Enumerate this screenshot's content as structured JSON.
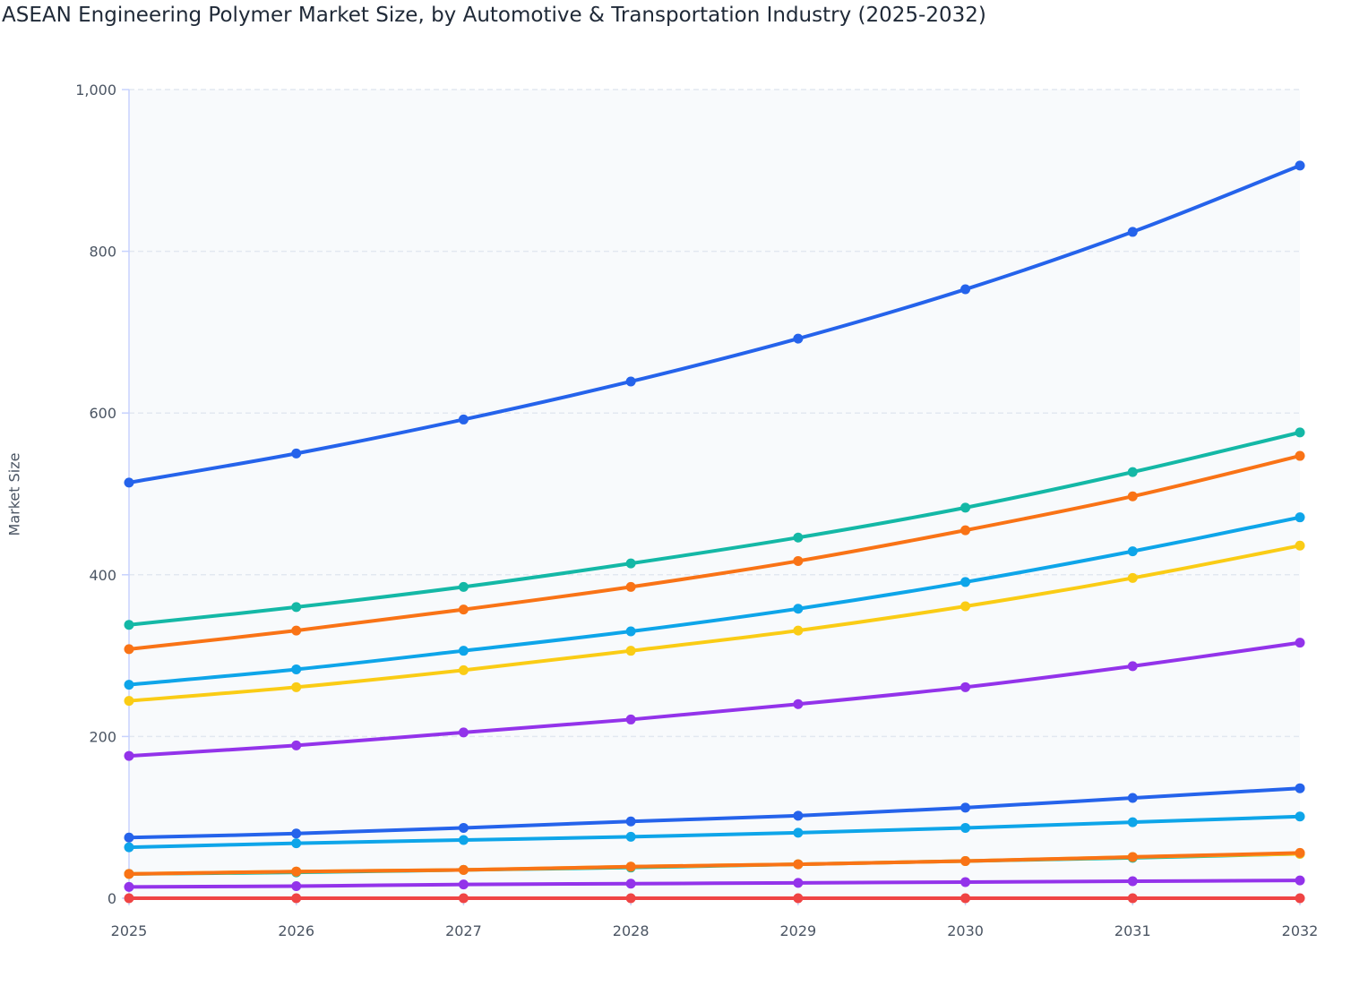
{
  "chart_data": {
    "type": "line",
    "title": "ASEAN Engineering Polymer Market Size, by Automotive & Transportation Industry (2025-2032)",
    "xlabel": "",
    "ylabel": "Market Size",
    "x": [
      2025,
      2026,
      2027,
      2028,
      2029,
      2030,
      2031,
      2032
    ],
    "ylim": [
      0,
      1000
    ],
    "yticks": [
      0,
      200,
      400,
      600,
      800,
      1000
    ],
    "ytick_labels": [
      "0",
      "200",
      "400",
      "600",
      "800",
      "1,000"
    ],
    "grid": true,
    "legend": "none",
    "series": [
      {
        "color": "#2563eb",
        "values": [
          514,
          550,
          592,
          639,
          692,
          753,
          824,
          906
        ]
      },
      {
        "color": "#14b8a6",
        "values": [
          338,
          360,
          385,
          414,
          446,
          483,
          527,
          576
        ]
      },
      {
        "color": "#f97316",
        "values": [
          308,
          331,
          357,
          385,
          417,
          455,
          497,
          547
        ]
      },
      {
        "color": "#0ea5e9",
        "values": [
          264,
          283,
          306,
          330,
          358,
          391,
          429,
          471
        ]
      },
      {
        "color": "#facc15",
        "values": [
          244,
          261,
          282,
          306,
          331,
          361,
          396,
          436
        ]
      },
      {
        "color": "#9333ea",
        "values": [
          176,
          189,
          205,
          221,
          240,
          261,
          287,
          316
        ]
      },
      {
        "color": "#2563eb",
        "values": [
          75,
          80,
          87,
          95,
          102,
          112,
          124,
          136
        ]
      },
      {
        "color": "#0ea5e9",
        "values": [
          63,
          68,
          72,
          76,
          81,
          87,
          94,
          101
        ]
      },
      {
        "color": "#14b8a6",
        "values": [
          30,
          32,
          35,
          38,
          42,
          46,
          50,
          55
        ]
      },
      {
        "color": "#facc15",
        "values": [
          30,
          33,
          35,
          39,
          42,
          46,
          51,
          55
        ]
      },
      {
        "color": "#f97316",
        "values": [
          30,
          33,
          35,
          39,
          42,
          46,
          51,
          56
        ]
      },
      {
        "color": "#9333ea",
        "values": [
          14,
          15,
          17,
          18,
          19,
          20,
          21,
          22
        ]
      },
      {
        "color": "#ef4444",
        "values": [
          0,
          0,
          0,
          0,
          0,
          0,
          0,
          0
        ]
      }
    ]
  }
}
